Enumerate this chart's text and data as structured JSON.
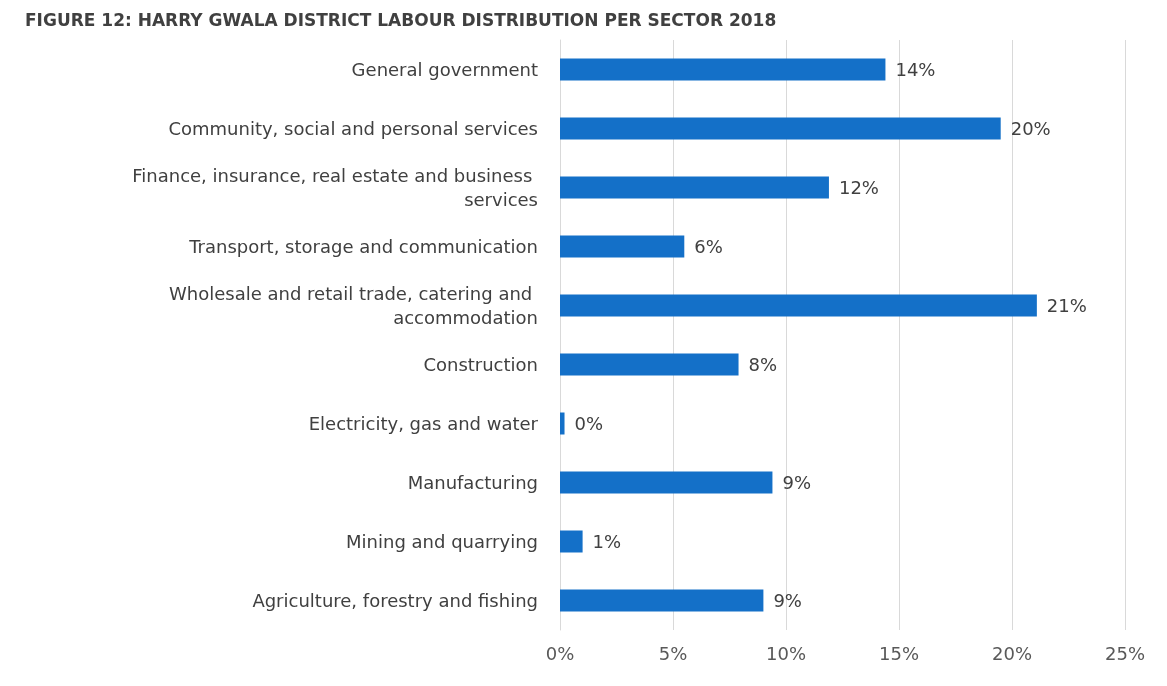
{
  "chart_data": {
    "type": "bar",
    "orientation": "horizontal",
    "title": "FIGURE 12: HARRY GWALA DISTRICT LABOUR DISTRIBUTION PER SECTOR 2018",
    "categories": [
      "General government",
      "Community, social and personal services",
      "Finance, insurance, real estate and business services",
      "Transport, storage and communication",
      "Wholesale and retail trade, catering and accommodation",
      "Construction",
      "Electricity, gas and water",
      "Manufacturing",
      "Mining and quarrying",
      "Agriculture, forestry and fishing"
    ],
    "values": [
      14.4,
      19.5,
      11.9,
      5.5,
      21.1,
      7.9,
      0.2,
      9.4,
      1.0,
      9.0
    ],
    "value_labels": [
      "14%",
      "20%",
      "12%",
      "6%",
      "21%",
      "8%",
      "0%",
      "9%",
      "1%",
      "9%"
    ],
    "color": "#1470c8",
    "xlim": [
      0,
      25
    ],
    "xticks": [
      {
        "value": 0,
        "label": "0%"
      },
      {
        "value": 5,
        "label": "5%"
      },
      {
        "value": 10,
        "label": "10%"
      },
      {
        "value": 15,
        "label": "15%"
      },
      {
        "value": 20,
        "label": "20%"
      },
      {
        "value": 25,
        "label": "25%"
      }
    ],
    "grid": "x"
  }
}
